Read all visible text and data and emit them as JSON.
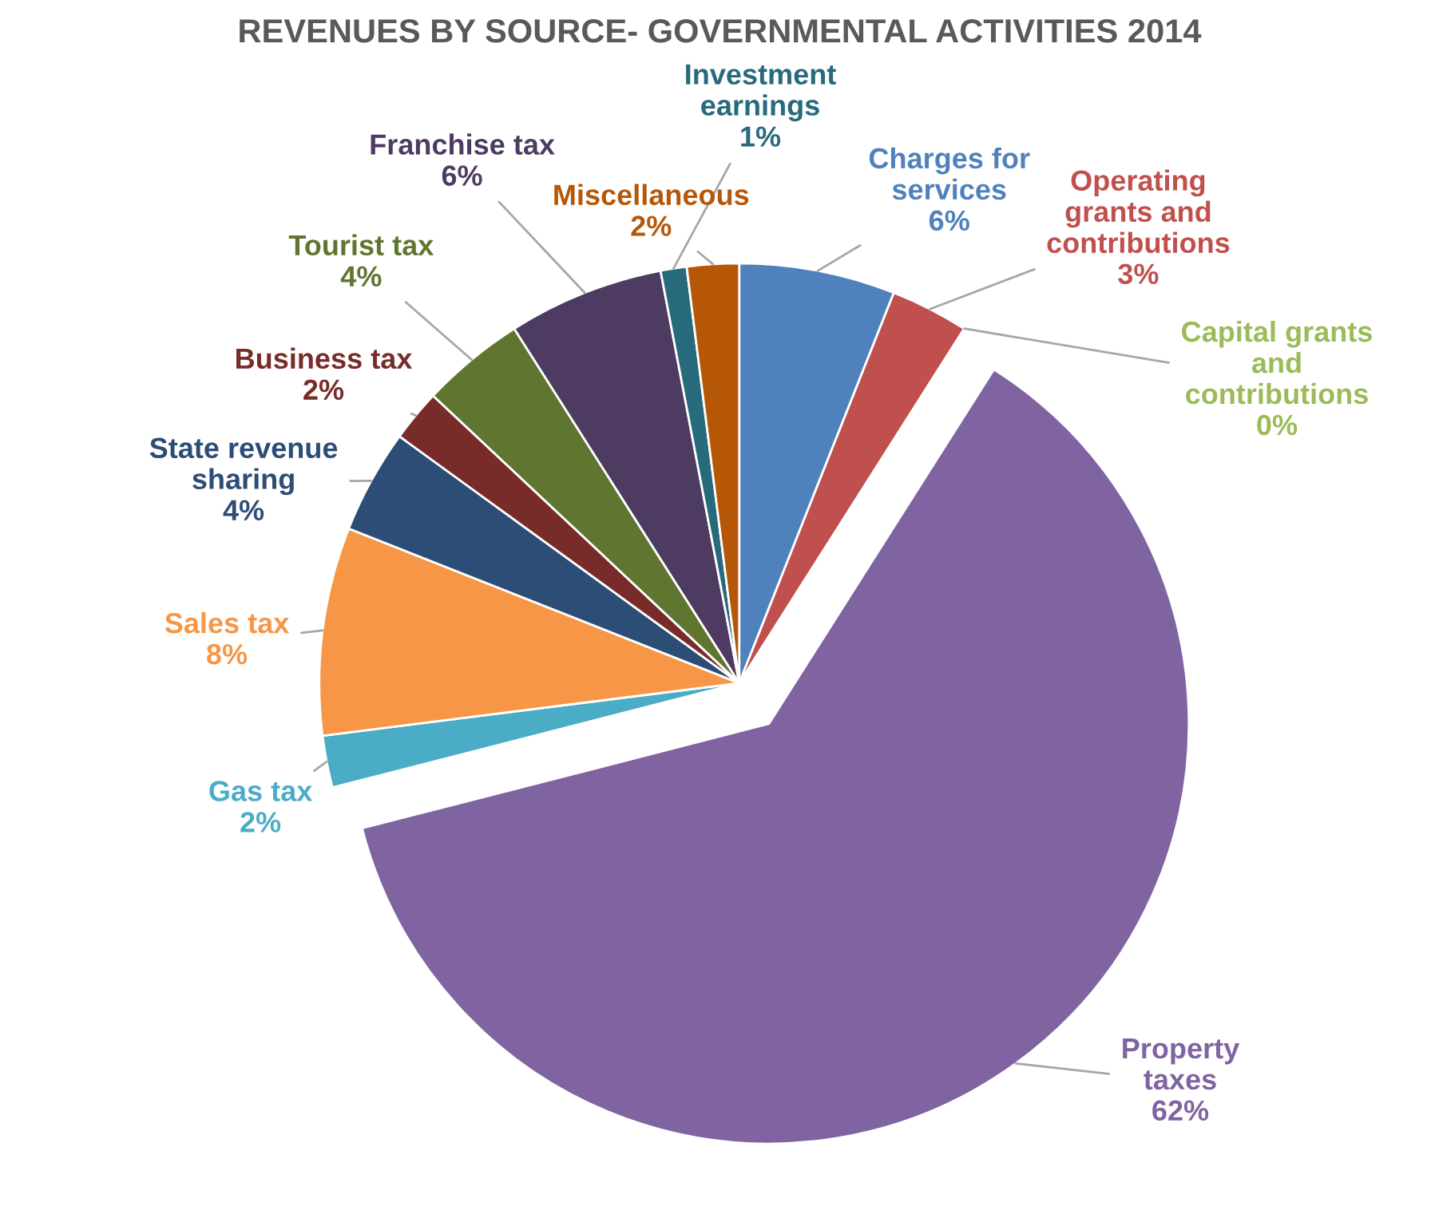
{
  "chart_data": {
    "type": "pie",
    "title": "REVENUES BY SOURCE- GOVERNMENTAL ACTIVITIES 2014",
    "categories": [
      "Charges for\nservices",
      "Operating\ngrants and\ncontributions",
      "Capital grants\nand\ncontributions",
      "Property\ntaxes",
      "Gas tax",
      "Sales tax",
      "State revenue\nsharing",
      "Business tax",
      "Tourist tax",
      "Franchise tax",
      "Investment\nearnings",
      "Miscellaneous"
    ],
    "values": [
      6,
      3,
      0,
      62,
      2,
      8,
      4,
      2,
      4,
      6,
      1,
      2
    ],
    "value_labels": [
      "6%",
      "3%",
      "0%",
      "62%",
      "2%",
      "8%",
      "4%",
      "2%",
      "4%",
      "6%",
      "1%",
      "2%"
    ],
    "colors": [
      "#4f81bd",
      "#c0504d",
      "#9bbb59",
      "#8064a2",
      "#4bacc6",
      "#f79646",
      "#2c4d75",
      "#772c2a",
      "#5f7530",
      "#4d3b62",
      "#276a7c",
      "#b65708"
    ],
    "legend": false
  }
}
